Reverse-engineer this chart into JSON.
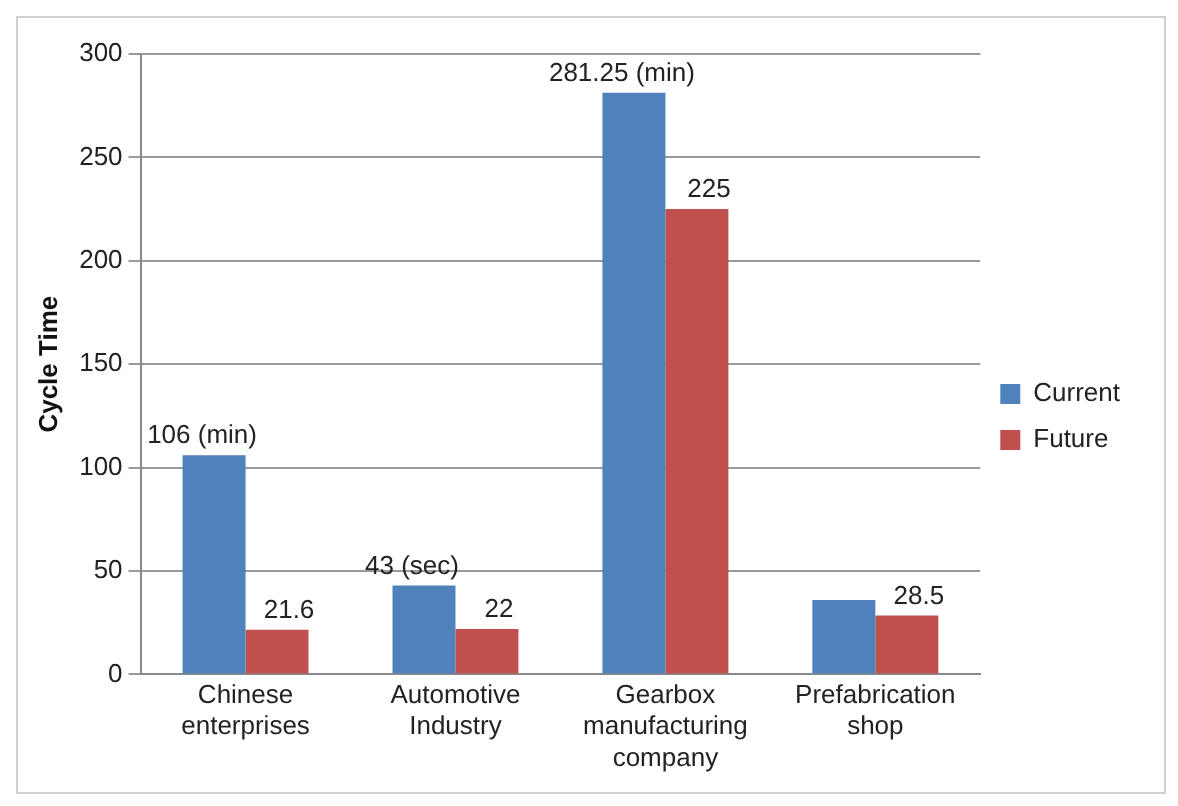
{
  "chart_data": {
    "type": "bar",
    "ylabel": "Cycle Time",
    "categories": [
      "Chinese enterprises",
      "Automotive Industry",
      "Gearbox manufacturing company",
      "Prefabrication shop"
    ],
    "series": [
      {
        "name": "Current",
        "color": "#4f81bd",
        "values": [
          106,
          43,
          281.25,
          36
        ],
        "value_labels": [
          "106 (min)",
          "43 (sec)",
          "281.25 (min)",
          null
        ]
      },
      {
        "name": "Future",
        "color": "#c0504d",
        "values": [
          21.6,
          22,
          225,
          28.5
        ],
        "value_labels": [
          "21.6",
          "22",
          "225",
          "28.5"
        ]
      }
    ],
    "ylim": [
      0,
      300
    ],
    "yticks": [
      0,
      50,
      100,
      150,
      200,
      250,
      300
    ],
    "grid": "y",
    "legend": "right"
  }
}
